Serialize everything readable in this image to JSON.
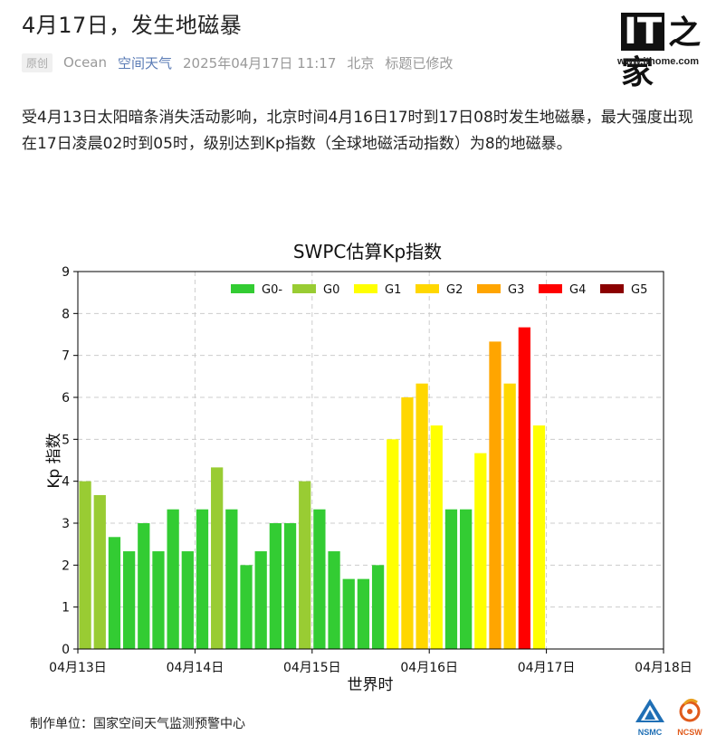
{
  "article": {
    "title": "4月17日，发生地磁暴",
    "badge": "原创",
    "author": "Ocean",
    "source": "空间天气",
    "datetime": "2025年04月17日 11:17",
    "location": "北京",
    "edited": "标题已修改",
    "body": "受4月13日太阳暗条消失活动影响，北京时间4月16日17时到17日08时发生地磁暴，最大强度出现在17日凌晨02时到05时，级别达到Kp指数（全球地磁活动指数）为8的地磁暴。",
    "credit": "制作单位：国家空间天气监测预警中心"
  },
  "brand": {
    "logo_text_it": "IT",
    "logo_text_zhi": "之家",
    "url": "www.ithome.com"
  },
  "org_logos": {
    "nsmc": "NSMC",
    "ncsw": "NCSW"
  },
  "colors": {
    "G0-": "#33cc33",
    "G0": "#99cc33",
    "G1": "#ffff00",
    "G2": "#ffd700",
    "G3": "#ffa500",
    "G4": "#ff0000",
    "G5": "#8b0000"
  },
  "chart_data": {
    "type": "bar",
    "title": "SWPC估算Kp指数",
    "xlabel": "世界时",
    "ylabel": "Kp 指数",
    "ylim": [
      0,
      9
    ],
    "yticks": [
      0,
      1,
      2,
      3,
      4,
      5,
      6,
      7,
      8,
      9
    ],
    "xticks": [
      "04月13日",
      "04月14日",
      "04月15日",
      "04月16日",
      "04月17日",
      "04月18日"
    ],
    "x_range_days": [
      0,
      5
    ],
    "grid": true,
    "legend_position": "top",
    "legend": [
      "G0-",
      "G0",
      "G1",
      "G2",
      "G3",
      "G4",
      "G5"
    ],
    "interval_hours": 3,
    "values": [
      4.0,
      3.67,
      2.67,
      2.33,
      3.0,
      2.33,
      3.33,
      2.33,
      3.33,
      4.33,
      3.33,
      2.0,
      2.33,
      3.0,
      3.0,
      4.0,
      3.33,
      2.33,
      1.67,
      1.67,
      2.0,
      5.0,
      6.0,
      6.33,
      5.33,
      3.33,
      3.33,
      4.67,
      7.33,
      6.33,
      7.67,
      5.33
    ],
    "levels": [
      "G0",
      "G0",
      "G0-",
      "G0-",
      "G0-",
      "G0-",
      "G0-",
      "G0-",
      "G0-",
      "G0",
      "G0-",
      "G0-",
      "G0-",
      "G0-",
      "G0-",
      "G0",
      "G0-",
      "G0-",
      "G0-",
      "G0-",
      "G0-",
      "G1",
      "G2",
      "G2",
      "G1",
      "G0-",
      "G0-",
      "G1",
      "G3",
      "G2",
      "G4",
      "G1"
    ]
  }
}
